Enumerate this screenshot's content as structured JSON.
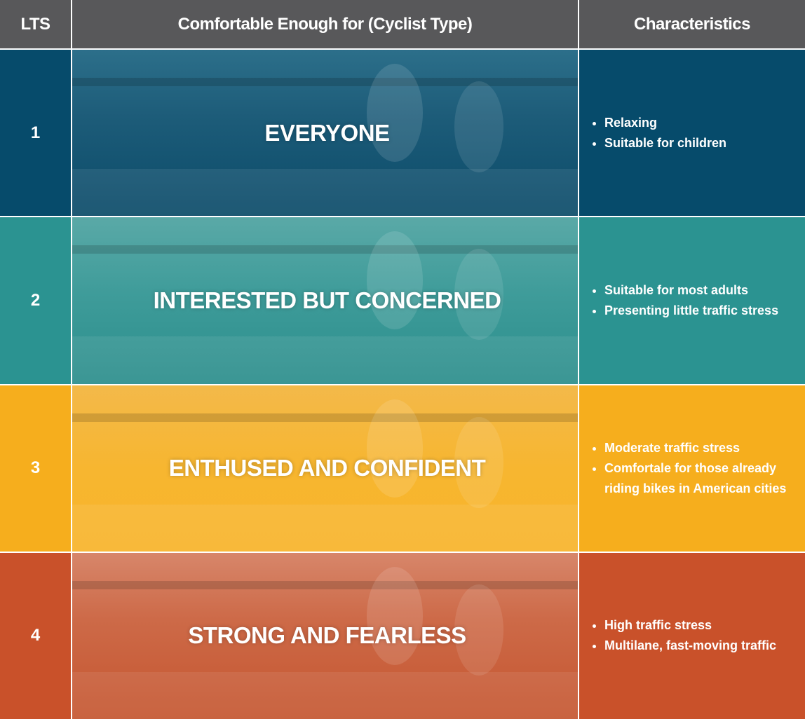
{
  "header": {
    "columns": [
      "LTS",
      "Comfortable Enough for (Cyclist Type)",
      "Characteristics"
    ]
  },
  "rows": [
    {
      "lts": "1",
      "cyclist_type": "EVERYONE",
      "characteristics": [
        "Relaxing",
        "Suitable for children"
      ]
    },
    {
      "lts": "2",
      "cyclist_type": "INTERESTED BUT CONCERNED",
      "characteristics": [
        "Suitable for most adults",
        "Presenting little traffic stress"
      ]
    },
    {
      "lts": "3",
      "cyclist_type": "ENTHUSED AND CONFIDENT",
      "characteristics": [
        "Moderate traffic stress",
        "Comfortale for those already riding bikes in American cities"
      ]
    },
    {
      "lts": "4",
      "cyclist_type": "STRONG AND FEARLESS",
      "characteristics": [
        "High traffic stress",
        "Multilane, fast-moving traffic"
      ]
    }
  ]
}
